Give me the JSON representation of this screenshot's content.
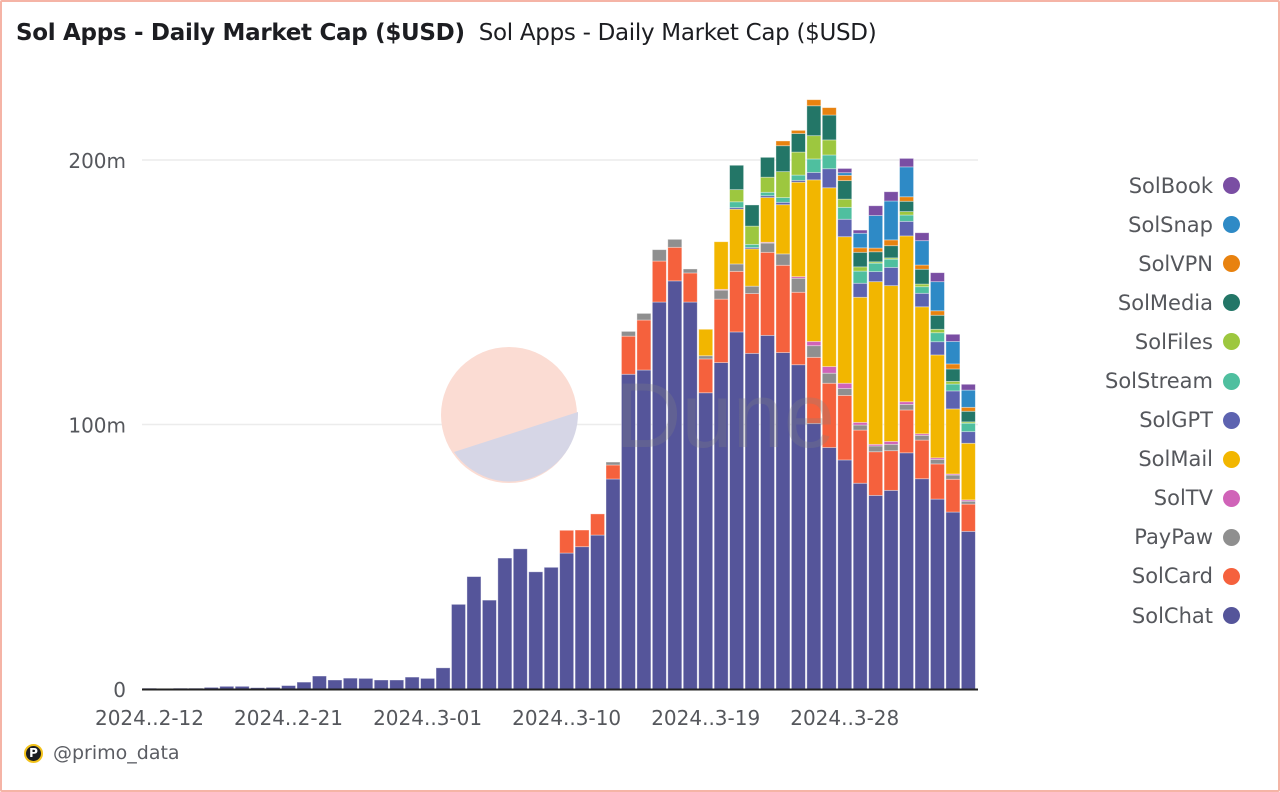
{
  "header": {
    "title": "Sol Apps - Daily Market Cap ($USD)",
    "subtitle": "Sol Apps - Daily Market Cap ($USD)"
  },
  "footer": {
    "author": "@primo_data",
    "logo_letter": "P"
  },
  "watermark": {
    "text": "Dune"
  },
  "chart_data": {
    "type": "bar",
    "stacked": true,
    "title": "Sol Apps - Daily Market Cap ($USD)",
    "xlabel": "",
    "ylabel": "",
    "ylim": [
      0,
      223
    ],
    "grid": true,
    "legend_position": "right",
    "y_ticks": [
      {
        "value": 0,
        "label": "0"
      },
      {
        "value": 100,
        "label": "100m"
      },
      {
        "value": 200,
        "label": "200m"
      }
    ],
    "x_tick_labels": [
      {
        "date": "2024-02-12",
        "label": "2024..2-12"
      },
      {
        "date": "2024-02-21",
        "label": "2024..2-21"
      },
      {
        "date": "2024-03-01",
        "label": "2024..3-01"
      },
      {
        "date": "2024-03-10",
        "label": "2024..3-10"
      },
      {
        "date": "2024-03-19",
        "label": "2024..3-19"
      },
      {
        "date": "2024-03-28",
        "label": "2024..3-28"
      }
    ],
    "value_unit": "millions USD",
    "x_start": "2024-02-12",
    "x_end": "2024-04-05",
    "series": [
      {
        "name": "SolChat",
        "color": "#55559a",
        "values": [
          0.3,
          0.2,
          0.3,
          0.3,
          0.6,
          1,
          1,
          0.5,
          0.6,
          1.3,
          2.6,
          4.9,
          3.4,
          4.1,
          4.0,
          3.4,
          3.4,
          4.5,
          4.0,
          8.0,
          32,
          42.5,
          33.6,
          49.5,
          53,
          44.3,
          46,
          51.4,
          53.8,
          58.2,
          79.4,
          119,
          120.6,
          146.3,
          154.3,
          146.3,
          112,
          123.4,
          135,
          126.9,
          133.7,
          127.2,
          122.6,
          100.4,
          91.3,
          86.6,
          77.8,
          73.2,
          75.1,
          89.3,
          79.5,
          71.8,
          66.9,
          59.6
        ]
      },
      {
        "name": "SolCard",
        "color": "#f5613d",
        "values": [
          0,
          0,
          0,
          0,
          0,
          0,
          0,
          0,
          0,
          0,
          0,
          0,
          0,
          0,
          0,
          0,
          0,
          0,
          0,
          0,
          0,
          0,
          0,
          0,
          0,
          0,
          0,
          8.6,
          6.3,
          8,
          5.3,
          14.4,
          18.9,
          15.5,
          12.7,
          11,
          12.8,
          24,
          22.9,
          22.6,
          31.4,
          33,
          27.4,
          25,
          24.3,
          24.4,
          20.1,
          16.5,
          15,
          16.2,
          14.6,
          13.3,
          12.4,
          10.3
        ]
      },
      {
        "name": "PayPaw",
        "color": "#8f8f8f",
        "values": [
          0,
          0,
          0,
          0,
          0,
          0,
          0,
          0,
          0,
          0,
          0,
          0,
          0,
          0,
          0,
          0,
          0,
          0,
          0,
          0,
          0,
          0,
          0,
          0,
          0,
          0,
          0,
          0,
          0,
          0,
          1.1,
          1.8,
          2.5,
          4.3,
          3,
          1.5,
          1.2,
          3.4,
          2.8,
          2.8,
          3.5,
          4.3,
          5.3,
          4.4,
          3.8,
          2.6,
          1.9,
          2.2,
          2.4,
          2.1,
          1.8,
          1.7,
          1.6,
          1.1
        ]
      },
      {
        "name": "SolTV",
        "color": "#d063b8",
        "values": [
          0,
          0,
          0,
          0,
          0,
          0,
          0,
          0,
          0,
          0,
          0,
          0,
          0,
          0,
          0,
          0,
          0,
          0,
          0,
          0,
          0,
          0,
          0,
          0,
          0,
          0,
          0,
          0,
          0,
          0,
          0,
          0,
          0,
          0,
          0,
          0,
          0,
          0.3,
          0,
          0,
          0.3,
          0,
          0.6,
          1.6,
          2.5,
          2,
          1,
          0.6,
          1.1,
          1,
          0.6,
          0.6,
          0.4,
          0.5
        ]
      },
      {
        "name": "SolMail",
        "color": "#f2b600",
        "values": [
          0,
          0,
          0,
          0,
          0,
          0,
          0,
          0,
          0,
          0,
          0,
          0,
          0,
          0,
          0,
          0,
          0,
          0,
          0,
          0,
          0,
          0,
          0,
          0,
          0,
          0,
          0,
          0,
          0,
          0,
          0,
          0,
          0,
          0,
          0,
          0,
          10,
          18,
          20.7,
          14.1,
          16.9,
          18.6,
          35.7,
          61.1,
          67.6,
          55.4,
          47.3,
          61.5,
          58.9,
          62.7,
          48,
          38.9,
          24.6,
          21.4
        ]
      },
      {
        "name": "SolGPT",
        "color": "#5d63b0",
        "values": [
          0,
          0,
          0,
          0,
          0,
          0,
          0,
          0,
          0,
          0,
          0,
          0,
          0,
          0,
          0,
          0,
          0,
          0,
          0,
          0,
          0,
          0,
          0,
          0,
          0,
          0,
          0,
          0,
          0,
          0,
          0,
          0,
          0,
          0,
          0,
          0,
          0,
          0,
          0.6,
          0.5,
          0.7,
          0.9,
          0.7,
          2.8,
          7.2,
          6.6,
          5.3,
          3.8,
          6.9,
          5.5,
          5.1,
          5,
          6.8,
          4.4
        ]
      },
      {
        "name": "SolStream",
        "color": "#4fbf9f",
        "values": [
          0,
          0,
          0,
          0,
          0,
          0,
          0,
          0,
          0,
          0,
          0,
          0,
          0,
          0,
          0,
          0,
          0,
          0,
          0,
          0,
          0,
          0,
          0,
          0,
          0,
          0,
          0,
          0,
          0,
          0,
          0,
          0,
          0,
          0,
          0,
          0,
          0,
          0,
          2.2,
          1.2,
          1.3,
          1.8,
          2,
          5.1,
          5.2,
          4.5,
          4.6,
          3.2,
          3.1,
          2.4,
          2.5,
          3.4,
          2.6,
          3.2
        ]
      },
      {
        "name": "SolFiles",
        "color": "#9dc73f",
        "values": [
          0,
          0,
          0,
          0,
          0,
          0,
          0,
          0,
          0,
          0,
          0,
          0,
          0,
          0,
          0,
          0,
          0,
          0,
          0,
          0,
          0,
          0,
          0,
          0,
          0,
          0,
          0,
          0,
          0,
          0,
          0,
          0,
          0,
          0,
          0,
          0,
          0,
          0,
          4.6,
          6.9,
          5.7,
          9.8,
          8.7,
          8.8,
          5.7,
          3.1,
          1.6,
          0.5,
          0.5,
          1.3,
          1,
          1.3,
          1,
          0.5
        ]
      },
      {
        "name": "SolMedia",
        "color": "#237667",
        "values": [
          0,
          0,
          0,
          0,
          0,
          0,
          0,
          0,
          0,
          0,
          0,
          0,
          0,
          0,
          0,
          0,
          0,
          0,
          0,
          0,
          0,
          0,
          0,
          0,
          0,
          0,
          0,
          0,
          0,
          0,
          0,
          0,
          0,
          0,
          0,
          0,
          0,
          0,
          9.2,
          8,
          7.5,
          9.8,
          7,
          11.3,
          9.4,
          7,
          5.5,
          3.8,
          4.6,
          3.9,
          5.6,
          5.3,
          4.7,
          4
        ]
      },
      {
        "name": "SolVPN",
        "color": "#e8820f",
        "values": [
          0,
          0,
          0,
          0,
          0,
          0,
          0,
          0,
          0,
          0,
          0,
          0,
          0,
          0,
          0,
          0,
          0,
          0,
          0,
          0,
          0,
          0,
          0,
          0,
          0,
          0,
          0,
          0,
          0,
          0,
          0,
          0,
          0,
          0,
          0,
          0,
          0,
          0,
          0,
          0,
          0,
          1.8,
          1.2,
          2.3,
          2.8,
          2,
          1.7,
          1.4,
          2.2,
          1.7,
          1.6,
          1.7,
          1.9,
          1.5
        ]
      },
      {
        "name": "SolSnap",
        "color": "#2e8ac6",
        "values": [
          0,
          0,
          0,
          0,
          0,
          0,
          0,
          0,
          0,
          0,
          0,
          0,
          0,
          0,
          0,
          0,
          0,
          0,
          0,
          0,
          0,
          0,
          0,
          0,
          0,
          0,
          0,
          0,
          0,
          0,
          0,
          0,
          0,
          0,
          0,
          0,
          0,
          0,
          0,
          0,
          0,
          0,
          0,
          0,
          0,
          1,
          5.5,
          12.3,
          14.7,
          11.3,
          9.2,
          11,
          8.5,
          6.5
        ]
      },
      {
        "name": "SolBook",
        "color": "#7a4ea3",
        "values": [
          0,
          0,
          0,
          0,
          0,
          0,
          0,
          0,
          0,
          0,
          0,
          0,
          0,
          0,
          0,
          0,
          0,
          0,
          0,
          0,
          0,
          0,
          0,
          0,
          0,
          0,
          0,
          0,
          0,
          0,
          0,
          0,
          0,
          0,
          0,
          0,
          0,
          0,
          0,
          0,
          0,
          0,
          0,
          0,
          0,
          1.6,
          1.2,
          3.7,
          3.5,
          3.2,
          3,
          3.4,
          2.7,
          2.2
        ]
      }
    ]
  }
}
